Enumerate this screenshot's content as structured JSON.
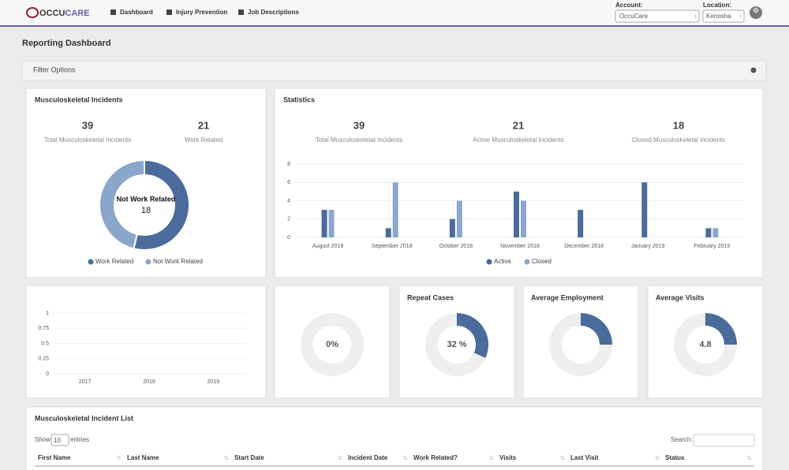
{
  "header": {
    "logo": [
      "OCCU",
      "CARE"
    ],
    "nav": [
      "Dashboard",
      "Injury Prevention",
      "Job Descriptions"
    ],
    "account_label": "Account:",
    "account": "OccuCare",
    "location_label": "Location:",
    "location": "Kenosha"
  },
  "page_title": "Reporting Dashboard",
  "filter": "Filter Options",
  "chart_data": [
    {
      "type": "pie",
      "title": "Musculoskeletal Incidents",
      "stats": [
        {
          "value": 39,
          "label": "Total Musculoskeletal Incidents"
        },
        {
          "value": 21,
          "label": "Work Related"
        }
      ],
      "categories": [
        "Work Related",
        "Not Work Related"
      ],
      "values": [
        21,
        18
      ],
      "colors": [
        "#4a6b9c",
        "#8ba6cb"
      ]
    },
    {
      "type": "bar",
      "title": "Statistics",
      "stats": [
        {
          "value": 39,
          "label": "Total Musculoskeletal Incidents"
        },
        {
          "value": 21,
          "label": "Active Musculoskeletal Incidents"
        },
        {
          "value": 18,
          "label": "Closed Musculoskeletal Incidents"
        }
      ],
      "categories": [
        "August 2018",
        "September 2018",
        "October 2018",
        "November 2018",
        "December 2018",
        "January 2019",
        "February 2019"
      ],
      "series": [
        {
          "name": "Active",
          "color": "#4a6b9c",
          "values": [
            3,
            1,
            2,
            5,
            3,
            6,
            1
          ]
        },
        {
          "name": "Closed",
          "color": "#8ba6cb",
          "values": [
            3,
            6,
            4,
            4,
            0,
            0,
            1
          ]
        }
      ],
      "ylim": [
        0,
        8
      ],
      "yticks": [
        0,
        2,
        4,
        6,
        8
      ],
      "grid": true
    },
    {
      "type": "line",
      "categories": [
        "2017",
        "2018",
        "2019"
      ],
      "ylim": [
        0,
        1
      ],
      "yticks": [
        0,
        0.25,
        0.5,
        0.75,
        1
      ],
      "grid": true
    },
    {
      "type": "donut",
      "value": 0,
      "value_label": "0%",
      "color": "#4a6b9c"
    },
    {
      "type": "donut",
      "title": "Repeat Cases",
      "value": 32,
      "value_label": "32 %",
      "color": "#4a6b9c"
    },
    {
      "type": "donut",
      "title": "Average Employment",
      "value": 25,
      "color": "#4a6b9c"
    },
    {
      "type": "donut",
      "title": "Average Visits",
      "value": 25,
      "center_text": "4.8",
      "color": "#4a6b9c"
    }
  ],
  "table": {
    "title": "Musculoskeletal Incident List",
    "show": "Show",
    "length": "10",
    "entries": "entries",
    "search": "Search:",
    "columns": [
      "First Name",
      "Last Name",
      "Start Date",
      "Incident Date",
      "Work Related?",
      "Visits",
      "Last Visit",
      "Status"
    ]
  }
}
